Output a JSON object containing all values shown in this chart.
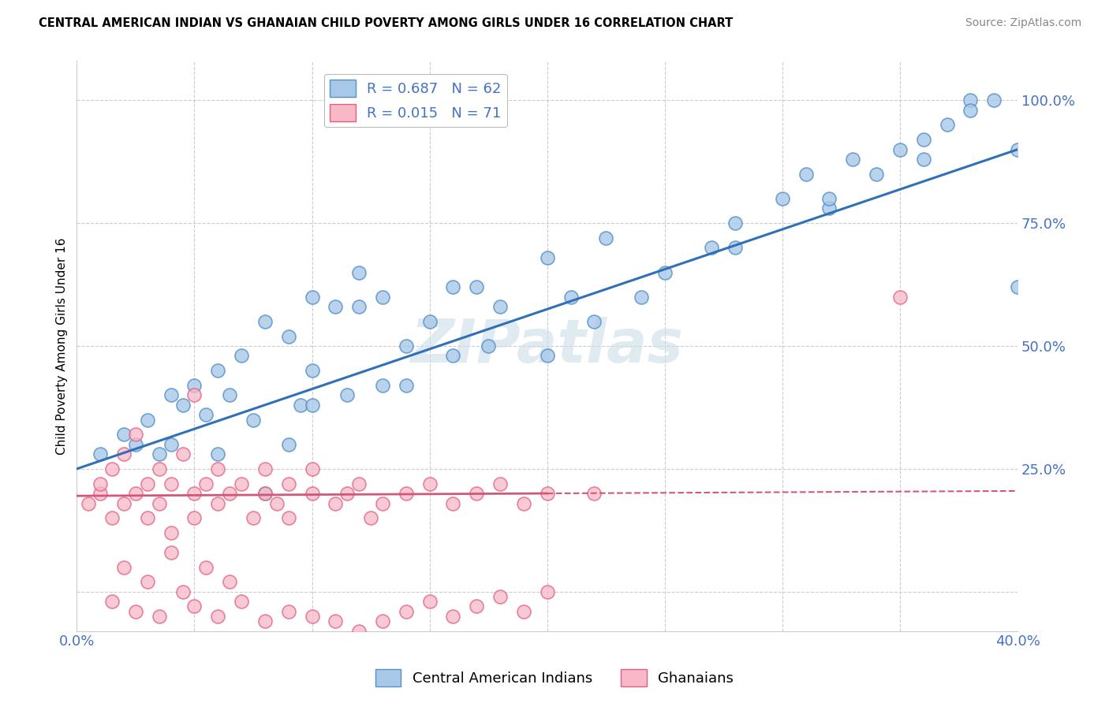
{
  "title": "CENTRAL AMERICAN INDIAN VS GHANAIAN CHILD POVERTY AMONG GIRLS UNDER 16 CORRELATION CHART",
  "source": "Source: ZipAtlas.com",
  "ylabel": "Child Poverty Among Girls Under 16",
  "legend_r1": "R = 0.687   N = 62",
  "legend_r2": "R = 0.015   N = 71",
  "legend_label1": "Central American Indians",
  "legend_label2": "Ghanaians",
  "blue_color": "#a8c8e8",
  "blue_edge_color": "#5590c8",
  "pink_color": "#f8b8c8",
  "pink_edge_color": "#e06080",
  "blue_line_color": "#3070b8",
  "pink_line_color": "#d05878",
  "watermark": "ZIPatlas",
  "watermark_color": "#ccdde8",
  "xlim": [
    0.0,
    0.4
  ],
  "ylim": [
    -0.08,
    1.08
  ],
  "xticks": [
    0.0,
    0.05,
    0.1,
    0.15,
    0.2,
    0.25,
    0.3,
    0.35,
    0.4
  ],
  "yticks": [
    0.0,
    0.25,
    0.5,
    0.75,
    1.0
  ],
  "ytick_labels": [
    "",
    "25.0%",
    "50.0%",
    "75.0%",
    "100.0%"
  ],
  "blue_line_x0": 0.0,
  "blue_line_y0": 0.25,
  "blue_line_x1": 0.4,
  "blue_line_y1": 0.9,
  "pink_line_x0": 0.0,
  "pink_line_y0": 0.195,
  "pink_line_x1": 0.4,
  "pink_line_y1": 0.205,
  "blue_x": [
    0.01,
    0.02,
    0.025,
    0.03,
    0.035,
    0.04,
    0.04,
    0.045,
    0.05,
    0.055,
    0.06,
    0.06,
    0.065,
    0.07,
    0.075,
    0.08,
    0.09,
    0.09,
    0.095,
    0.1,
    0.1,
    0.11,
    0.115,
    0.12,
    0.12,
    0.13,
    0.14,
    0.14,
    0.15,
    0.16,
    0.17,
    0.175,
    0.18,
    0.2,
    0.21,
    0.225,
    0.25,
    0.27,
    0.3,
    0.31,
    0.32,
    0.33,
    0.35,
    0.37,
    0.38,
    0.39,
    0.08,
    0.1,
    0.13,
    0.16,
    0.22,
    0.28,
    0.34,
    0.36,
    0.38,
    0.4,
    0.2,
    0.24,
    0.28,
    0.32,
    0.36,
    0.4
  ],
  "blue_y": [
    0.28,
    0.32,
    0.3,
    0.35,
    0.28,
    0.4,
    0.3,
    0.38,
    0.42,
    0.36,
    0.45,
    0.28,
    0.4,
    0.48,
    0.35,
    0.55,
    0.52,
    0.3,
    0.38,
    0.45,
    0.6,
    0.58,
    0.4,
    0.65,
    0.58,
    0.6,
    0.5,
    0.42,
    0.55,
    0.48,
    0.62,
    0.5,
    0.58,
    0.68,
    0.6,
    0.72,
    0.65,
    0.7,
    0.8,
    0.85,
    0.78,
    0.88,
    0.9,
    0.95,
    1.0,
    1.0,
    0.2,
    0.38,
    0.42,
    0.62,
    0.55,
    0.75,
    0.85,
    0.92,
    0.98,
    0.9,
    0.48,
    0.6,
    0.7,
    0.8,
    0.88,
    0.62
  ],
  "pink_x": [
    0.005,
    0.01,
    0.01,
    0.015,
    0.015,
    0.02,
    0.02,
    0.025,
    0.025,
    0.03,
    0.03,
    0.035,
    0.035,
    0.04,
    0.04,
    0.045,
    0.05,
    0.05,
    0.055,
    0.06,
    0.06,
    0.065,
    0.07,
    0.075,
    0.08,
    0.08,
    0.085,
    0.09,
    0.09,
    0.1,
    0.1,
    0.11,
    0.115,
    0.12,
    0.125,
    0.13,
    0.14,
    0.15,
    0.16,
    0.17,
    0.18,
    0.19,
    0.2,
    0.22,
    0.015,
    0.02,
    0.025,
    0.03,
    0.035,
    0.04,
    0.045,
    0.05,
    0.055,
    0.06,
    0.065,
    0.07,
    0.08,
    0.09,
    0.1,
    0.11,
    0.12,
    0.13,
    0.14,
    0.15,
    0.16,
    0.17,
    0.18,
    0.19,
    0.2,
    0.35,
    0.05
  ],
  "pink_y": [
    0.18,
    0.2,
    0.22,
    0.15,
    0.25,
    0.18,
    0.28,
    0.2,
    0.32,
    0.22,
    0.15,
    0.25,
    0.18,
    0.22,
    0.12,
    0.28,
    0.2,
    0.15,
    0.22,
    0.18,
    0.25,
    0.2,
    0.22,
    0.15,
    0.2,
    0.25,
    0.18,
    0.22,
    0.15,
    0.2,
    0.25,
    0.18,
    0.2,
    0.22,
    0.15,
    0.18,
    0.2,
    0.22,
    0.18,
    0.2,
    0.22,
    0.18,
    0.2,
    0.2,
    -0.02,
    0.05,
    -0.04,
    0.02,
    -0.05,
    0.08,
    0.0,
    -0.03,
    0.05,
    -0.05,
    0.02,
    -0.02,
    -0.06,
    -0.04,
    -0.05,
    -0.06,
    -0.08,
    -0.06,
    -0.04,
    -0.02,
    -0.05,
    -0.03,
    -0.01,
    -0.04,
    0.0,
    0.6,
    0.4
  ]
}
